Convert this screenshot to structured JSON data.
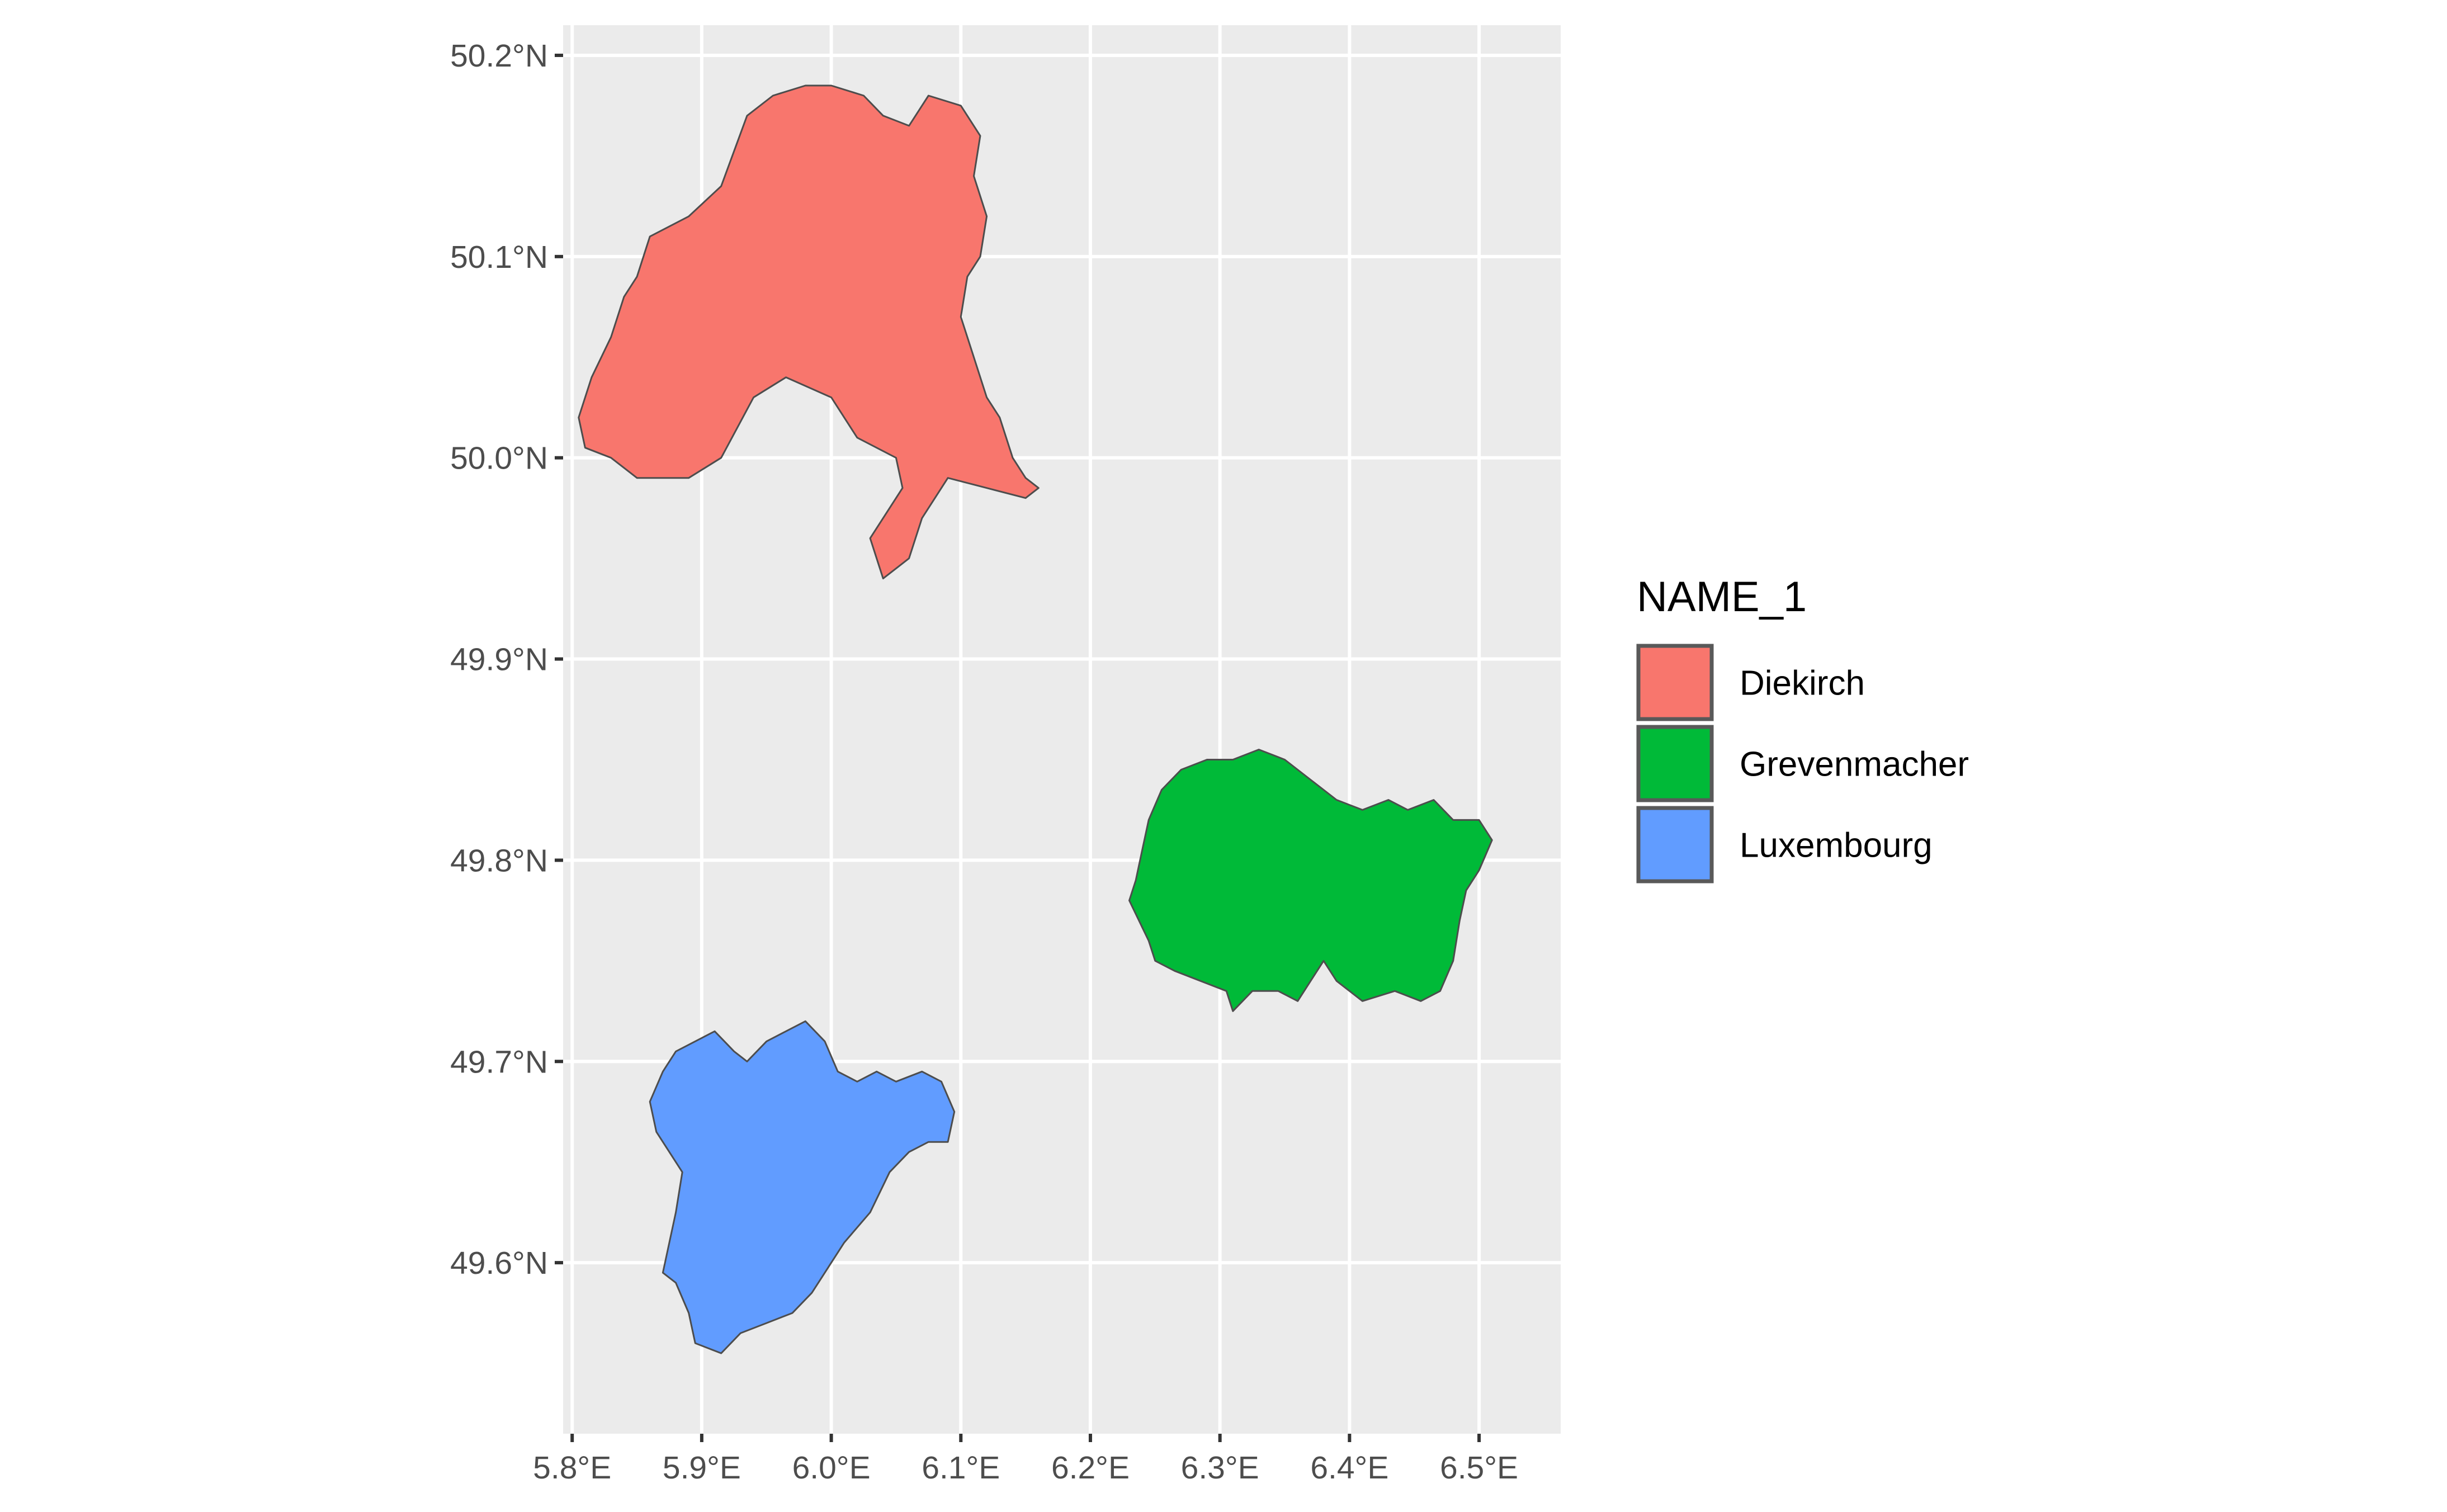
{
  "map": {
    "x_ticks": [
      "5.8°E",
      "5.9°E",
      "6.0°E",
      "6.1°E",
      "6.2°E",
      "6.3°E",
      "6.4°E",
      "6.5°E"
    ],
    "y_ticks": [
      "50.2°N",
      "50.1°N",
      "50.0°N",
      "49.9°N",
      "49.8°N",
      "49.7°N",
      "49.6°N"
    ],
    "x_tick_values": [
      5.8,
      5.9,
      6.0,
      6.1,
      6.2,
      6.3,
      6.4,
      6.5
    ],
    "y_tick_values": [
      50.2,
      50.1,
      50.0,
      49.9,
      49.8,
      49.7,
      49.6
    ],
    "xlim": [
      5.793,
      6.563
    ],
    "ylim": [
      49.515,
      50.215
    ],
    "panel_background": "#EBEBEB",
    "grid_color": "#FFFFFF",
    "region_outline_color": "#4D4D4D"
  },
  "legend": {
    "title": "NAME_1",
    "items": [
      {
        "label": "Diekirch",
        "color": "#F8766D"
      },
      {
        "label": "Grevenmacher",
        "color": "#00BA38"
      },
      {
        "label": "Luxembourg",
        "color": "#619CFF"
      }
    ]
  },
  "regions": [
    {
      "name": "Diekirch",
      "color": "#F8766D",
      "outline": [
        [
          5.83,
          50.0
        ],
        [
          5.85,
          49.99
        ],
        [
          5.89,
          49.99
        ],
        [
          5.915,
          50.0
        ],
        [
          5.94,
          50.03
        ],
        [
          5.965,
          50.04
        ],
        [
          6.0,
          50.03
        ],
        [
          6.02,
          50.01
        ],
        [
          6.05,
          50.0
        ],
        [
          6.055,
          49.985
        ],
        [
          6.03,
          49.96
        ],
        [
          6.04,
          49.94
        ],
        [
          6.06,
          49.95
        ],
        [
          6.07,
          49.97
        ],
        [
          6.09,
          49.99
        ],
        [
          6.12,
          49.985
        ],
        [
          6.15,
          49.98
        ],
        [
          6.16,
          49.985
        ],
        [
          6.15,
          49.99
        ],
        [
          6.14,
          50.0
        ],
        [
          6.13,
          50.02
        ],
        [
          6.12,
          50.03
        ],
        [
          6.11,
          50.05
        ],
        [
          6.1,
          50.07
        ],
        [
          6.105,
          50.09
        ],
        [
          6.115,
          50.1
        ],
        [
          6.12,
          50.12
        ],
        [
          6.11,
          50.14
        ],
        [
          6.115,
          50.16
        ],
        [
          6.1,
          50.175
        ],
        [
          6.075,
          50.18
        ],
        [
          6.06,
          50.165
        ],
        [
          6.04,
          50.17
        ],
        [
          6.025,
          50.18
        ],
        [
          6.0,
          50.185
        ],
        [
          5.98,
          50.185
        ],
        [
          5.955,
          50.18
        ],
        [
          5.935,
          50.17
        ],
        [
          5.915,
          50.135
        ],
        [
          5.89,
          50.12
        ],
        [
          5.86,
          50.11
        ],
        [
          5.85,
          50.09
        ],
        [
          5.84,
          50.08
        ],
        [
          5.83,
          50.06
        ],
        [
          5.815,
          50.04
        ],
        [
          5.805,
          50.02
        ],
        [
          5.81,
          50.005
        ]
      ]
    },
    {
      "name": "Grevenmacher",
      "color": "#00BA38",
      "outline": [
        [
          6.23,
          49.78
        ],
        [
          6.245,
          49.76
        ],
        [
          6.25,
          49.75
        ],
        [
          6.265,
          49.745
        ],
        [
          6.285,
          49.74
        ],
        [
          6.305,
          49.735
        ],
        [
          6.31,
          49.725
        ],
        [
          6.325,
          49.735
        ],
        [
          6.345,
          49.735
        ],
        [
          6.36,
          49.73
        ],
        [
          6.37,
          49.74
        ],
        [
          6.38,
          49.75
        ],
        [
          6.39,
          49.74
        ],
        [
          6.41,
          49.73
        ],
        [
          6.435,
          49.735
        ],
        [
          6.455,
          49.73
        ],
        [
          6.47,
          49.735
        ],
        [
          6.48,
          49.75
        ],
        [
          6.485,
          49.77
        ],
        [
          6.49,
          49.785
        ],
        [
          6.5,
          49.795
        ],
        [
          6.51,
          49.81
        ],
        [
          6.5,
          49.82
        ],
        [
          6.48,
          49.82
        ],
        [
          6.465,
          49.83
        ],
        [
          6.445,
          49.825
        ],
        [
          6.43,
          49.83
        ],
        [
          6.41,
          49.825
        ],
        [
          6.39,
          49.83
        ],
        [
          6.37,
          49.84
        ],
        [
          6.35,
          49.85
        ],
        [
          6.33,
          49.855
        ],
        [
          6.31,
          49.85
        ],
        [
          6.29,
          49.85
        ],
        [
          6.27,
          49.845
        ],
        [
          6.255,
          49.835
        ],
        [
          6.245,
          49.82
        ],
        [
          6.24,
          49.805
        ],
        [
          6.235,
          49.79
        ]
      ]
    },
    {
      "name": "Luxembourg",
      "color": "#619CFF",
      "outline": [
        [
          5.88,
          49.59
        ],
        [
          5.89,
          49.575
        ],
        [
          5.895,
          49.56
        ],
        [
          5.915,
          49.555
        ],
        [
          5.93,
          49.565
        ],
        [
          5.95,
          49.57
        ],
        [
          5.97,
          49.575
        ],
        [
          5.985,
          49.585
        ],
        [
          6.0,
          49.6
        ],
        [
          6.01,
          49.61
        ],
        [
          6.03,
          49.625
        ],
        [
          6.045,
          49.645
        ],
        [
          6.06,
          49.655
        ],
        [
          6.075,
          49.66
        ],
        [
          6.09,
          49.66
        ],
        [
          6.095,
          49.675
        ],
        [
          6.085,
          49.69
        ],
        [
          6.07,
          49.695
        ],
        [
          6.05,
          49.69
        ],
        [
          6.035,
          49.695
        ],
        [
          6.02,
          49.69
        ],
        [
          6.005,
          49.695
        ],
        [
          5.995,
          49.71
        ],
        [
          5.98,
          49.72
        ],
        [
          5.965,
          49.715
        ],
        [
          5.95,
          49.71
        ],
        [
          5.935,
          49.7
        ],
        [
          5.925,
          49.705
        ],
        [
          5.91,
          49.715
        ],
        [
          5.895,
          49.71
        ],
        [
          5.88,
          49.705
        ],
        [
          5.87,
          49.695
        ],
        [
          5.86,
          49.68
        ],
        [
          5.865,
          49.665
        ],
        [
          5.875,
          49.655
        ],
        [
          5.885,
          49.645
        ],
        [
          5.88,
          49.625
        ],
        [
          5.875,
          49.61
        ],
        [
          5.87,
          49.595
        ]
      ]
    }
  ]
}
